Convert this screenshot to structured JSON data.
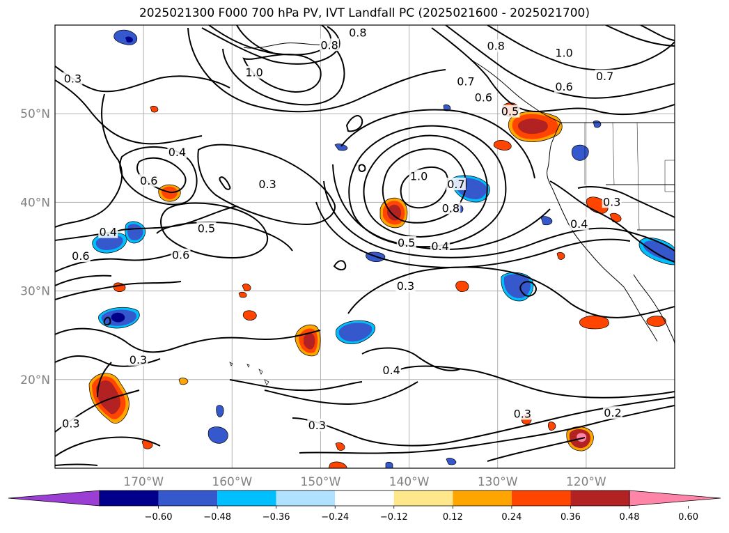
{
  "title": "2025021300 F000 700 hPa PV, IVT Landfall PC (2025021600 - 2025021700)",
  "map": {
    "extent": {
      "lon_min": -180,
      "lon_max": -110,
      "lat_min": 10,
      "lat_max": 60
    },
    "lon_ticks": [
      {
        "lon": -170,
        "label": "170°W"
      },
      {
        "lon": -160,
        "label": "160°W"
      },
      {
        "lon": -150,
        "label": "150°W"
      },
      {
        "lon": -140,
        "label": "140°W"
      },
      {
        "lon": -130,
        "label": "130°W"
      },
      {
        "lon": -120,
        "label": "120°W"
      }
    ],
    "lat_ticks": [
      {
        "lat": 20,
        "label": "20°N"
      },
      {
        "lat": 30,
        "label": "30°N"
      },
      {
        "lat": 40,
        "label": "40°N"
      },
      {
        "lat": 50,
        "label": "50°N"
      }
    ],
    "gridlines": true,
    "contour_labels": [
      {
        "text": "0.8",
        "lon": -145.8,
        "lat": 59.1
      },
      {
        "text": "0.8",
        "lon": -149.0,
        "lat": 57.7
      },
      {
        "text": "0.8",
        "lon": -130.2,
        "lat": 57.6
      },
      {
        "text": "1.0",
        "lon": -122.5,
        "lat": 56.8
      },
      {
        "text": "1.0",
        "lon": -157.5,
        "lat": 54.6
      },
      {
        "text": "0.7",
        "lon": -117.9,
        "lat": 54.2
      },
      {
        "text": "0.3",
        "lon": -178.0,
        "lat": 53.9
      },
      {
        "text": "0.7",
        "lon": -133.6,
        "lat": 53.6
      },
      {
        "text": "0.6",
        "lon": -122.5,
        "lat": 53.0
      },
      {
        "text": "0.6",
        "lon": -131.6,
        "lat": 51.8
      },
      {
        "text": "0.5",
        "lon": -128.6,
        "lat": 50.2
      },
      {
        "text": "0.4",
        "lon": -174.0,
        "lat": 36.6
      },
      {
        "text": "0.4",
        "lon": -166.2,
        "lat": 45.6
      },
      {
        "text": "1.0",
        "lon": -138.9,
        "lat": 42.9
      },
      {
        "text": "0.6",
        "lon": -169.4,
        "lat": 42.4
      },
      {
        "text": "0.3",
        "lon": -156.0,
        "lat": 42.0
      },
      {
        "text": "0.7",
        "lon": -134.7,
        "lat": 42.0
      },
      {
        "text": "0.3",
        "lon": -117.1,
        "lat": 40.0
      },
      {
        "text": "0.8",
        "lon": -135.3,
        "lat": 39.3
      },
      {
        "text": "0.5",
        "lon": -162.9,
        "lat": 37.0
      },
      {
        "text": "0.4",
        "lon": -120.8,
        "lat": 37.5
      },
      {
        "text": "0.5",
        "lon": -140.3,
        "lat": 35.4
      },
      {
        "text": "0.4",
        "lon": -136.5,
        "lat": 35.0
      },
      {
        "text": "0.6",
        "lon": -165.8,
        "lat": 34.0
      },
      {
        "text": "0.6",
        "lon": -177.1,
        "lat": 33.9
      },
      {
        "text": "0.3",
        "lon": -140.4,
        "lat": 30.5
      },
      {
        "text": "0.3",
        "lon": -170.6,
        "lat": 22.2
      },
      {
        "text": "0.4",
        "lon": -142.0,
        "lat": 21.0
      },
      {
        "text": "0.3",
        "lon": -127.2,
        "lat": 16.1
      },
      {
        "text": "0.2",
        "lon": -117.0,
        "lat": 16.2
      },
      {
        "text": "0.3",
        "lon": -178.2,
        "lat": 15.0
      },
      {
        "text": "0.3",
        "lon": -150.4,
        "lat": 14.8
      }
    ]
  },
  "colorbar": {
    "colors": [
      "#9b3fd4",
      "#00008b",
      "#3558cd",
      "#00bfff",
      "#b0e2ff",
      "#ffffff",
      "#ffe88c",
      "#ffa500",
      "#ff4500",
      "#b22222",
      "#ff85a8"
    ],
    "ticks": [
      "−0.60",
      "−0.48",
      "−0.36",
      "−0.24",
      "−0.12",
      "0.12",
      "0.24",
      "0.36",
      "0.48",
      "0.60"
    ]
  }
}
